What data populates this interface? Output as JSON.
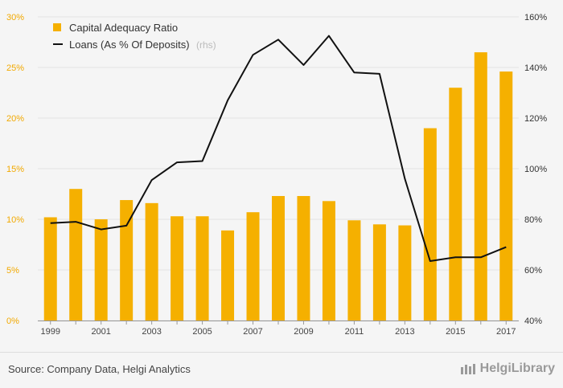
{
  "chart_data": {
    "type": "bar",
    "categories": [
      "1999",
      "2000",
      "2001",
      "2002",
      "2003",
      "2004",
      "2005",
      "2006",
      "2007",
      "2008",
      "2009",
      "2010",
      "2011",
      "2012",
      "2013",
      "2014",
      "2015",
      "2016",
      "2017"
    ],
    "x_tick_labels": [
      "1999",
      "2001",
      "2003",
      "2005",
      "2007",
      "2009",
      "2011",
      "2013",
      "2015",
      "2017"
    ],
    "series": [
      {
        "name": "Capital Adequacy Ratio",
        "type": "bar",
        "axis": "left",
        "color": "#f5b000",
        "values": [
          10.2,
          13.0,
          10.0,
          11.9,
          11.6,
          10.3,
          10.3,
          8.9,
          10.7,
          12.3,
          12.3,
          11.8,
          9.9,
          9.5,
          9.4,
          19.0,
          23.0,
          26.5,
          24.6
        ]
      },
      {
        "name": "Loans (As % Of Deposits)",
        "name_suffix": "(rhs)",
        "type": "line",
        "axis": "right",
        "color": "#111111",
        "values": [
          78.5,
          79.0,
          76.0,
          77.5,
          95.5,
          102.5,
          103.0,
          127.0,
          145.0,
          151.0,
          141.0,
          152.5,
          138.0,
          137.5,
          96.0,
          63.5,
          65.0,
          65.0,
          69.0
        ]
      }
    ],
    "y_left": {
      "ticks": [
        "0%",
        "5%",
        "10%",
        "15%",
        "20%",
        "25%",
        "30%"
      ],
      "ylim": [
        0,
        30
      ]
    },
    "y_right": {
      "ticks": [
        "40%",
        "60%",
        "80%",
        "100%",
        "120%",
        "140%",
        "160%"
      ],
      "ylim": [
        40,
        160
      ]
    },
    "grid": true,
    "legend_position": "top-left"
  },
  "footer": {
    "source": "Source: Company Data, Helgi Analytics",
    "brand": "HelgiLibrary"
  }
}
